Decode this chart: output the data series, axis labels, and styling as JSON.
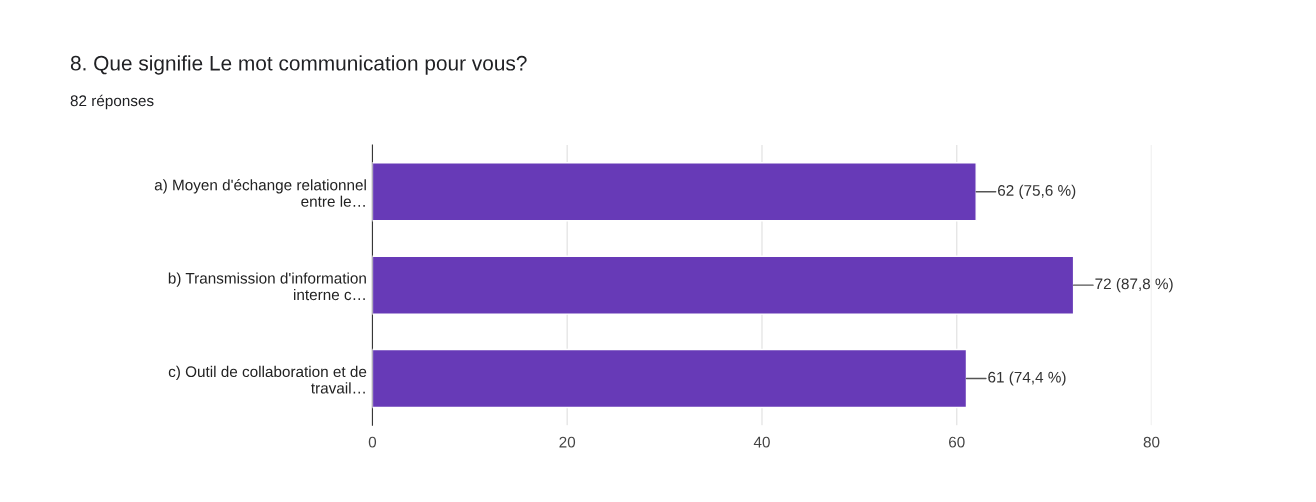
{
  "chart_data": {
    "type": "bar",
    "orientation": "horizontal",
    "title": "8. Que signifie Le mot communication pour vous?",
    "subtitle": "82 réponses",
    "categories": [
      "a) Moyen d'échange relationnel\nentre le…",
      "b) Transmission d'information\ninterne c…",
      "c) Outil de collaboration et de\ntravail…"
    ],
    "series": [
      {
        "color": "#673ab7",
        "values": [
          62,
          72,
          61
        ],
        "value_labels": [
          "62 (75,6 %)",
          "72 (87,8 %)",
          "61 (74,4 %)"
        ]
      }
    ],
    "xlim": [
      0,
      80
    ],
    "xticks": [
      0,
      20,
      40,
      60,
      80
    ],
    "grid": "x"
  }
}
